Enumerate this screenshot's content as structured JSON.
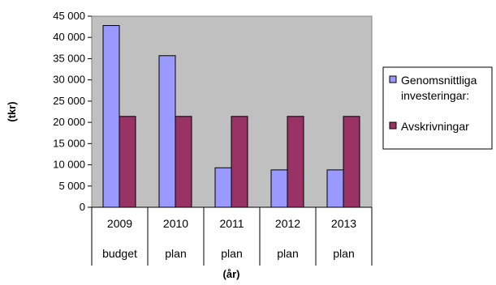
{
  "chart_data": {
    "type": "bar",
    "categories": [
      "2009",
      "2010",
      "2011",
      "2012",
      "2013"
    ],
    "category_sublabels": [
      "budget",
      "plan",
      "plan",
      "plan",
      "plan"
    ],
    "series": [
      {
        "name": "Genomsnittliga investeringar:",
        "legend_lines": [
          "Genomsnittliga",
          "investeringar:"
        ],
        "color": "#9999ff",
        "values": [
          42800,
          35700,
          9300,
          8800,
          8800
        ]
      },
      {
        "name": "Avskrivningar",
        "legend_lines": [
          "Avskrivningar"
        ],
        "color": "#993366",
        "values": [
          21400,
          21400,
          21400,
          21400,
          21400
        ]
      }
    ],
    "ylabel": "(tkr)",
    "xlabel": "(år)",
    "ylim": [
      0,
      45000
    ],
    "ytick_labels": [
      "0",
      "5 000",
      "10 000",
      "15 000",
      "20 000",
      "25 000",
      "30 000",
      "35 000",
      "40 000",
      "45 000"
    ],
    "plot_background": "#c0c0c0",
    "grid": false,
    "legend_position": "right"
  }
}
